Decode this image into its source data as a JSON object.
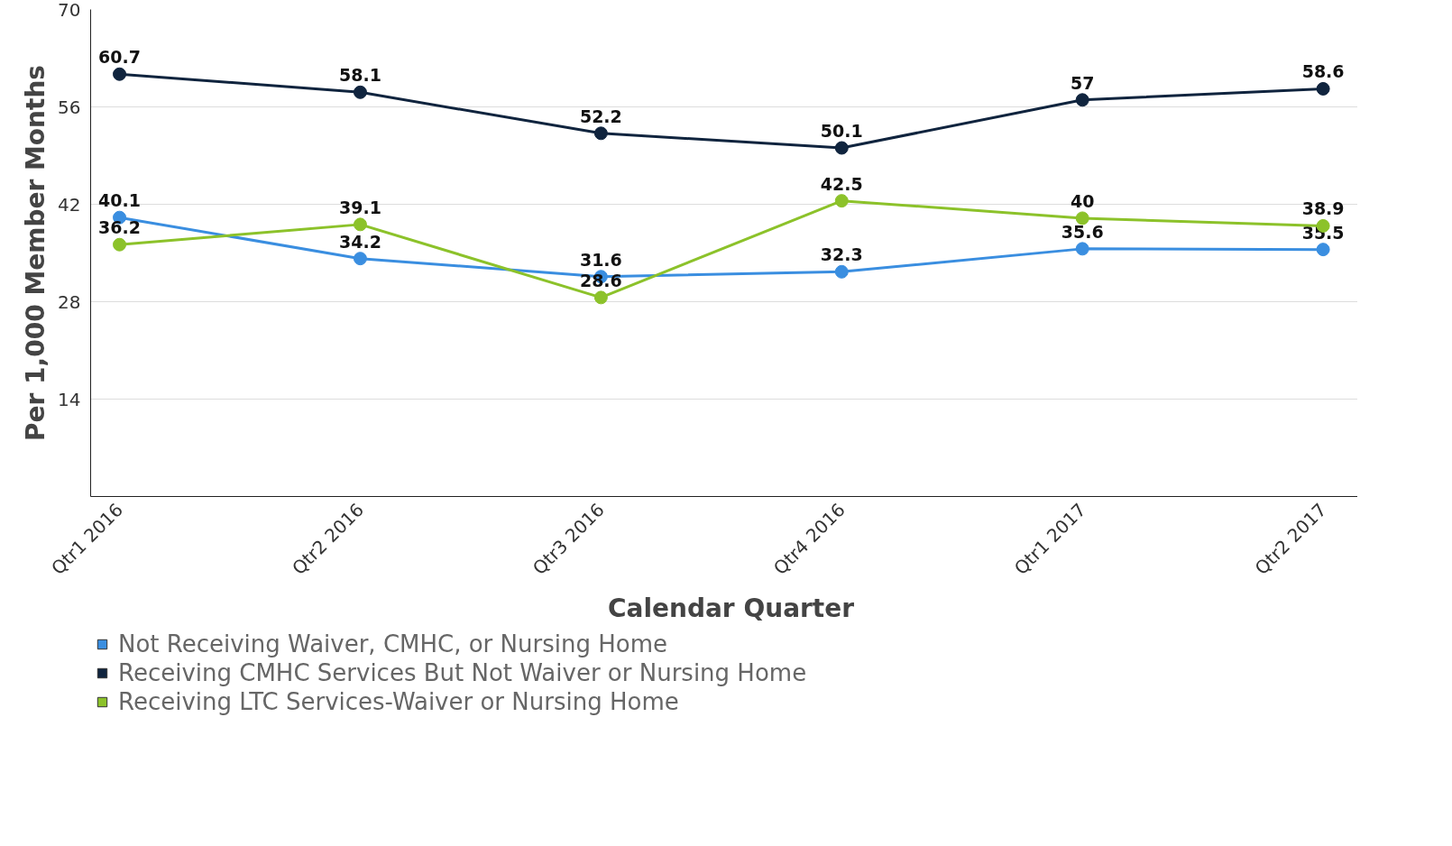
{
  "chart_data": {
    "type": "line",
    "xlabel": "Calendar Quarter",
    "ylabel": "Per 1,000 Member Months",
    "categories": [
      "Qtr1 2016",
      "Qtr2 2016",
      "Qtr3 2016",
      "Qtr4 2016",
      "Qtr1 2017",
      "Qtr2 2017"
    ],
    "series": [
      {
        "name": "Not Receiving Waiver, CMHC, or Nursing Home",
        "color": "#3a8ee0",
        "values": [
          40.1,
          34.2,
          31.6,
          32.3,
          35.6,
          35.5
        ]
      },
      {
        "name": "Receiving CMHC Services But Not Waiver or Nursing Home",
        "color": "#10243e",
        "values": [
          60.7,
          58.1,
          52.2,
          50.1,
          57,
          58.6
        ]
      },
      {
        "name": "Receiving LTC Services-Waiver or Nursing Home",
        "color": "#8cc22a",
        "values": [
          36.2,
          39.1,
          28.6,
          42.5,
          40,
          38.9
        ]
      }
    ],
    "ylim": [
      0,
      70
    ],
    "yticks": [
      14,
      28,
      42,
      56,
      70
    ],
    "grid": "y",
    "legend": "bottom",
    "marker": "circle",
    "line_style": "solid",
    "data_labels": true
  }
}
